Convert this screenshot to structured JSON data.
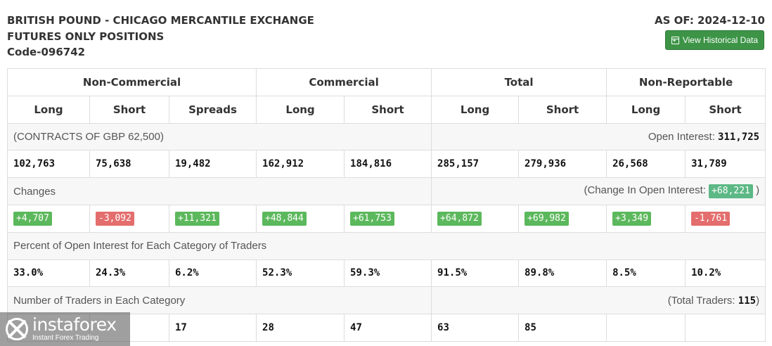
{
  "header": {
    "title_lines": [
      "BRITISH POUND - CHICAGO MERCANTILE EXCHANGE",
      "FUTURES ONLY POSITIONS",
      "Code-096742"
    ],
    "as_of": "AS OF: 2024-12-10",
    "history_button": "View Historical Data"
  },
  "table": {
    "groups": [
      "Non-Commercial",
      "Commercial",
      "Total",
      "Non-Reportable"
    ],
    "columns": [
      "Long",
      "Short",
      "Spreads",
      "Long",
      "Short",
      "Long",
      "Short",
      "Long",
      "Short"
    ],
    "contracts_label": "(CONTRACTS OF GBP 62,500)",
    "open_interest_label": "Open Interest:",
    "open_interest_value": "311,725",
    "positions": [
      "102,763",
      "75,638",
      "19,482",
      "162,912",
      "184,816",
      "285,157",
      "279,936",
      "26,568",
      "31,789"
    ],
    "changes_label": "Changes",
    "change_oi_label": "(Change In Open Interest:",
    "change_oi_value": "+68,221",
    "change_oi_close": ")",
    "changes": [
      "+4,707",
      "-3,092",
      "+11,321",
      "+48,844",
      "+61,753",
      "+64,872",
      "+69,982",
      "+3,349",
      "-1,761"
    ],
    "percent_label": "Percent of Open Interest for Each Category of Traders",
    "percents": [
      "33.0%",
      "24.3%",
      "6.2%",
      "52.3%",
      "59.3%",
      "91.5%",
      "89.8%",
      "8.5%",
      "10.2%"
    ],
    "traders_label": "Number of Traders in Each Category",
    "total_traders_label": "(Total Traders:",
    "total_traders_value": "115",
    "total_traders_close": ")",
    "traders": [
      "",
      "",
      "17",
      "28",
      "47",
      "63",
      "85",
      "",
      ""
    ]
  },
  "colors": {
    "positive": "#5cb85c",
    "negative": "#e46d6d",
    "button": "#3d9447"
  },
  "watermark": {
    "name": "instaforex",
    "tagline": "Instant Forex Trading"
  }
}
